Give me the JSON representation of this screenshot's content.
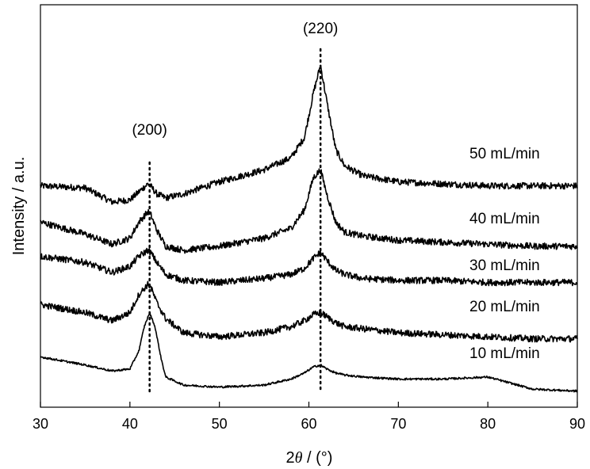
{
  "chart_data": {
    "type": "line",
    "title": "",
    "xlabel_prefix": "2",
    "xlabel_symbol": "θ",
    "xlabel_suffix": " / (°)",
    "ylabel": "Intensity / a.u.",
    "xlim": [
      30,
      90
    ],
    "ylim": [
      0,
      10
    ],
    "x_ticks": [
      30,
      40,
      50,
      60,
      70,
      80,
      90
    ],
    "grid": false,
    "legend": "none",
    "line_color": "#000000",
    "reference_lines": [
      {
        "label": "(200)",
        "x": 42.2
      },
      {
        "label": "(220)",
        "x": 61.3
      }
    ],
    "series": [
      {
        "name": "50 mL/min",
        "noise": 0.08,
        "x": [
          30,
          35,
          38,
          40,
          41,
          42,
          42.3,
          43,
          44,
          46,
          50,
          55,
          58,
          59.5,
          60.5,
          61.3,
          62,
          63,
          64,
          66,
          70,
          75,
          80,
          85,
          90
        ],
        "y": [
          5.5,
          5.45,
          5.1,
          5.15,
          5.35,
          5.55,
          5.5,
          5.3,
          5.2,
          5.3,
          5.6,
          5.9,
          6.2,
          6.7,
          7.8,
          8.5,
          7.6,
          6.4,
          6.0,
          5.75,
          5.6,
          5.55,
          5.5,
          5.5,
          5.5
        ]
      },
      {
        "name": "40 mL/min",
        "noise": 0.08,
        "x": [
          30,
          35,
          38,
          40,
          41,
          42,
          42.3,
          43,
          44,
          46,
          50,
          55,
          58,
          59.5,
          60.5,
          61.3,
          62,
          63,
          64,
          66,
          70,
          75,
          80,
          85,
          90
        ],
        "y": [
          4.6,
          4.3,
          4.05,
          4.2,
          4.6,
          4.85,
          4.8,
          4.4,
          4.0,
          3.9,
          4.0,
          4.2,
          4.45,
          4.9,
          5.7,
          5.9,
          5.3,
          4.6,
          4.35,
          4.25,
          4.15,
          4.1,
          4.05,
          4.0,
          4.0
        ]
      },
      {
        "name": "30 mL/min",
        "noise": 0.08,
        "x": [
          30,
          35,
          38,
          40,
          41,
          42,
          42.3,
          43,
          44,
          46,
          50,
          55,
          58,
          59.5,
          60.5,
          61.3,
          62,
          63,
          64,
          66,
          70,
          75,
          80,
          85,
          90
        ],
        "y": [
          3.75,
          3.6,
          3.35,
          3.5,
          3.75,
          3.9,
          3.85,
          3.6,
          3.3,
          3.15,
          3.1,
          3.2,
          3.3,
          3.45,
          3.7,
          3.85,
          3.65,
          3.4,
          3.3,
          3.2,
          3.15,
          3.15,
          3.1,
          3.1,
          3.1
        ]
      },
      {
        "name": "20 mL/min",
        "noise": 0.08,
        "x": [
          30,
          35,
          38,
          40,
          41,
          42,
          42.3,
          43,
          44,
          46,
          50,
          55,
          58,
          59.5,
          60.5,
          61.3,
          62,
          63,
          64,
          66,
          70,
          75,
          80,
          85,
          90
        ],
        "y": [
          2.55,
          2.35,
          2.15,
          2.35,
          2.8,
          3.05,
          3.0,
          2.6,
          2.2,
          1.85,
          1.75,
          1.85,
          2.0,
          2.15,
          2.3,
          2.35,
          2.25,
          2.1,
          2.0,
          1.95,
          1.85,
          1.8,
          1.75,
          1.7,
          1.7
        ]
      },
      {
        "name": "10 mL/min",
        "noise": 0.025,
        "x": [
          30,
          35,
          38,
          40,
          41,
          41.6,
          42.2,
          42.8,
          43.5,
          44,
          46,
          50,
          55,
          58,
          59.5,
          60.5,
          61.3,
          62,
          63,
          64,
          66,
          70,
          75,
          80,
          85,
          90
        ],
        "y": [
          1.25,
          1.05,
          0.9,
          0.95,
          1.4,
          2.0,
          2.35,
          2.0,
          1.2,
          0.75,
          0.55,
          0.5,
          0.55,
          0.7,
          0.85,
          1.0,
          1.05,
          0.95,
          0.85,
          0.8,
          0.75,
          0.7,
          0.7,
          0.75,
          0.45,
          0.4
        ]
      }
    ]
  }
}
